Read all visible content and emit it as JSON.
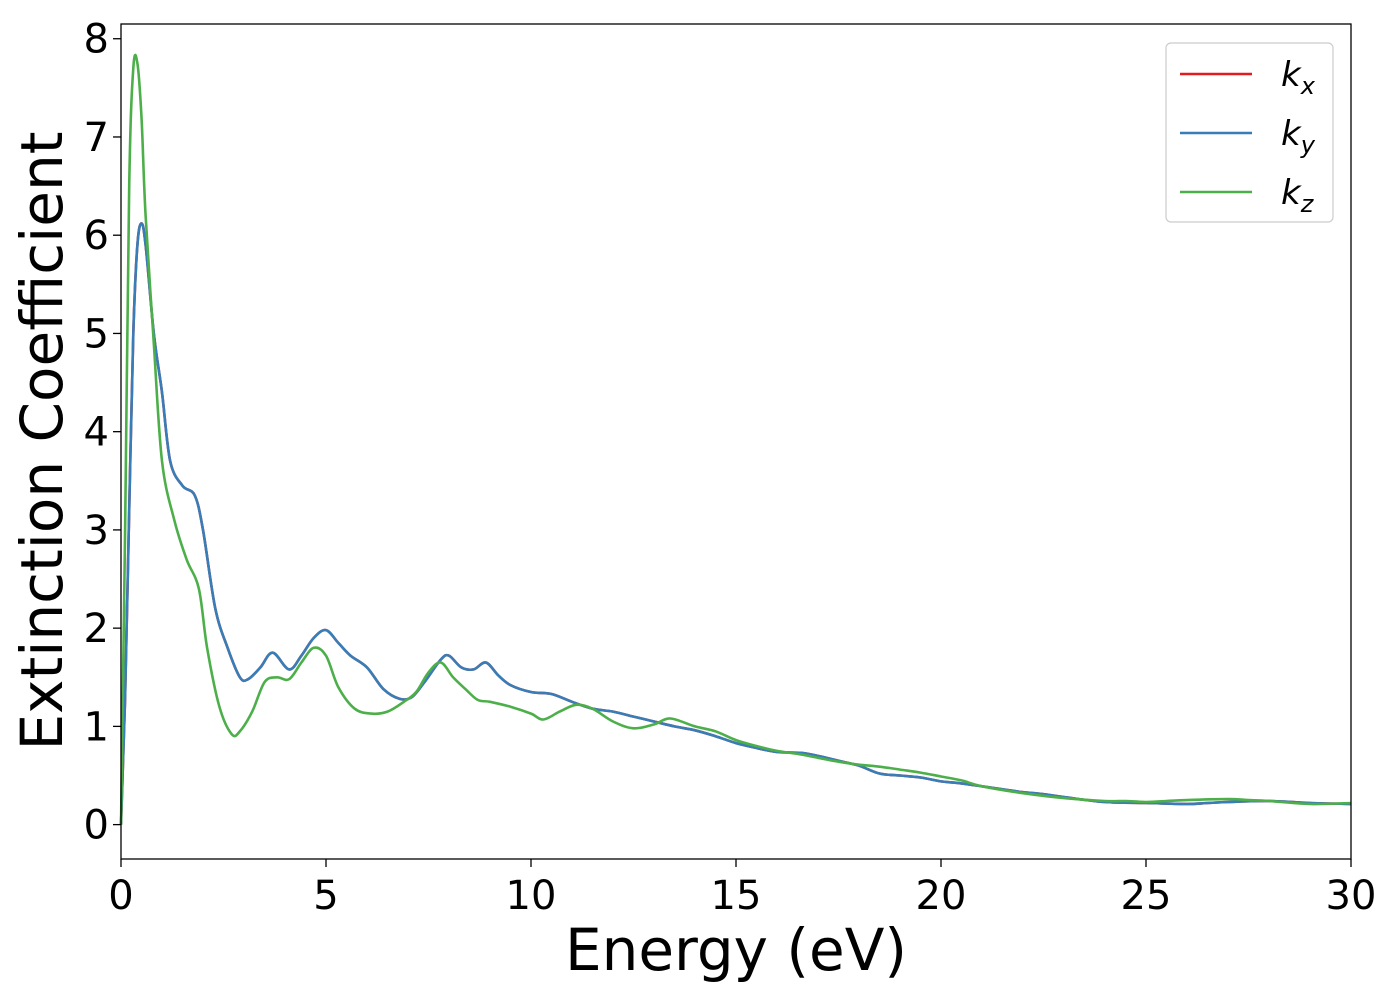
{
  "chart_data": {
    "type": "line",
    "xlabel": "Energy (eV)",
    "ylabel": "Extinction Coefficient",
    "xlim": [
      0,
      30
    ],
    "ylim": [
      -0.35,
      8.15
    ],
    "xticks": [
      0,
      5,
      10,
      15,
      20,
      25,
      30
    ],
    "yticks": [
      0,
      1,
      2,
      3,
      4,
      5,
      6,
      7,
      8
    ],
    "grid": false,
    "legend_position": "top-right",
    "series": [
      {
        "name": "kx",
        "label_main": "k",
        "label_sub": "x",
        "color": "#e41a1c",
        "x": [
          0,
          0.1,
          0.2,
          0.3,
          0.4,
          0.5,
          0.6,
          0.8,
          1.0,
          1.2,
          1.5,
          1.8,
          2.0,
          2.3,
          2.6,
          2.9,
          3.1,
          3.4,
          3.7,
          4.1,
          4.4,
          4.7,
          5.0,
          5.3,
          5.6,
          6.0,
          6.4,
          6.8,
          7.1,
          7.4,
          7.8,
          8.0,
          8.3,
          8.6,
          8.9,
          9.2,
          9.5,
          10.0,
          10.5,
          11.0,
          11.5,
          12.0,
          12.5,
          13.0,
          13.5,
          14.0,
          14.5,
          15.0,
          15.5,
          16.0,
          16.6,
          17.0,
          17.5,
          18.0,
          18.5,
          19.0,
          19.5,
          20.0,
          20.5,
          21.0,
          21.5,
          22.0,
          22.5,
          23.0,
          24.0,
          25.0,
          26.0,
          26.5,
          27.0,
          28.0,
          29.0,
          30.0
        ],
        "y": [
          0,
          1.3,
          3.2,
          5.0,
          5.9,
          6.12,
          5.9,
          5.0,
          4.4,
          3.7,
          3.45,
          3.35,
          3.0,
          2.2,
          1.8,
          1.5,
          1.48,
          1.6,
          1.75,
          1.58,
          1.72,
          1.9,
          1.98,
          1.85,
          1.72,
          1.6,
          1.38,
          1.28,
          1.3,
          1.45,
          1.68,
          1.72,
          1.6,
          1.58,
          1.65,
          1.52,
          1.42,
          1.35,
          1.33,
          1.25,
          1.18,
          1.15,
          1.1,
          1.05,
          1.0,
          0.96,
          0.9,
          0.83,
          0.78,
          0.74,
          0.73,
          0.7,
          0.65,
          0.6,
          0.52,
          0.5,
          0.48,
          0.44,
          0.42,
          0.39,
          0.36,
          0.33,
          0.31,
          0.28,
          0.23,
          0.22,
          0.21,
          0.22,
          0.23,
          0.24,
          0.22,
          0.21
        ]
      },
      {
        "name": "ky",
        "label_main": "k",
        "label_sub": "y",
        "color": "#377eb8",
        "x": [
          0,
          0.1,
          0.2,
          0.3,
          0.4,
          0.5,
          0.6,
          0.8,
          1.0,
          1.2,
          1.5,
          1.8,
          2.0,
          2.3,
          2.6,
          2.9,
          3.1,
          3.4,
          3.7,
          4.1,
          4.4,
          4.7,
          5.0,
          5.3,
          5.6,
          6.0,
          6.4,
          6.8,
          7.1,
          7.4,
          7.8,
          8.0,
          8.3,
          8.6,
          8.9,
          9.2,
          9.5,
          10.0,
          10.5,
          11.0,
          11.5,
          12.0,
          12.5,
          13.0,
          13.5,
          14.0,
          14.5,
          15.0,
          15.5,
          16.0,
          16.6,
          17.0,
          17.5,
          18.0,
          18.5,
          19.0,
          19.5,
          20.0,
          20.5,
          21.0,
          21.5,
          22.0,
          22.5,
          23.0,
          24.0,
          25.0,
          26.0,
          26.5,
          27.0,
          28.0,
          29.0,
          30.0
        ],
        "y": [
          0,
          1.3,
          3.2,
          5.0,
          5.9,
          6.12,
          5.9,
          5.0,
          4.4,
          3.7,
          3.45,
          3.35,
          3.0,
          2.2,
          1.8,
          1.5,
          1.48,
          1.6,
          1.75,
          1.58,
          1.72,
          1.9,
          1.98,
          1.85,
          1.72,
          1.6,
          1.38,
          1.28,
          1.3,
          1.45,
          1.68,
          1.72,
          1.6,
          1.58,
          1.65,
          1.52,
          1.42,
          1.35,
          1.33,
          1.25,
          1.18,
          1.15,
          1.1,
          1.05,
          1.0,
          0.96,
          0.9,
          0.83,
          0.78,
          0.74,
          0.73,
          0.7,
          0.65,
          0.6,
          0.52,
          0.5,
          0.48,
          0.44,
          0.42,
          0.39,
          0.36,
          0.33,
          0.31,
          0.28,
          0.23,
          0.22,
          0.21,
          0.22,
          0.23,
          0.24,
          0.22,
          0.21
        ]
      },
      {
        "name": "kz",
        "label_main": "k",
        "label_sub": "z",
        "color": "#4daf4a",
        "x": [
          0,
          0.1,
          0.2,
          0.3,
          0.4,
          0.5,
          0.6,
          0.8,
          1.0,
          1.3,
          1.6,
          1.9,
          2.1,
          2.4,
          2.7,
          2.9,
          3.2,
          3.5,
          3.8,
          4.1,
          4.4,
          4.7,
          5.0,
          5.3,
          5.7,
          6.1,
          6.5,
          6.9,
          7.2,
          7.5,
          7.8,
          8.1,
          8.4,
          8.7,
          9.0,
          9.5,
          10.0,
          10.3,
          10.7,
          11.1,
          11.5,
          12.0,
          12.5,
          13.0,
          13.4,
          14.0,
          14.5,
          15.0,
          15.5,
          16.0,
          16.5,
          17.0,
          17.5,
          18.0,
          18.5,
          19.0,
          19.5,
          20.0,
          20.5,
          21.0,
          22.0,
          23.0,
          24.0,
          24.5,
          25.0,
          25.5,
          26.0,
          27.0,
          27.5,
          28.0,
          29.0,
          30.0
        ],
        "y": [
          0,
          3.0,
          6.5,
          7.7,
          7.75,
          7.2,
          6.2,
          4.9,
          3.7,
          3.1,
          2.7,
          2.4,
          1.8,
          1.2,
          0.92,
          0.95,
          1.15,
          1.45,
          1.5,
          1.48,
          1.65,
          1.8,
          1.72,
          1.4,
          1.18,
          1.13,
          1.15,
          1.25,
          1.35,
          1.55,
          1.65,
          1.5,
          1.38,
          1.27,
          1.25,
          1.2,
          1.13,
          1.07,
          1.15,
          1.22,
          1.18,
          1.05,
          0.98,
          1.02,
          1.08,
          1.0,
          0.95,
          0.86,
          0.8,
          0.75,
          0.72,
          0.68,
          0.64,
          0.61,
          0.59,
          0.56,
          0.53,
          0.49,
          0.45,
          0.39,
          0.32,
          0.27,
          0.24,
          0.24,
          0.23,
          0.24,
          0.25,
          0.26,
          0.25,
          0.24,
          0.21,
          0.22
        ]
      }
    ]
  }
}
